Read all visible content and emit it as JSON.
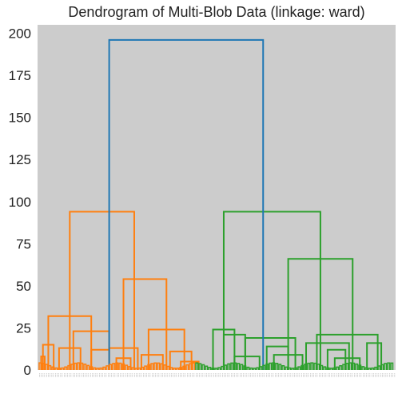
{
  "chart_data": {
    "type": "dendrogram",
    "title": "Dendrogram of Multi-Blob Data (linkage: ward)",
    "xlabel": "",
    "ylabel": "",
    "ylim": [
      0,
      205
    ],
    "yticks": [
      0,
      25,
      50,
      75,
      100,
      125,
      150,
      175,
      200
    ],
    "grid": false,
    "background_color": "#cccccc",
    "leaf_label_placeholder": "…",
    "series": [
      {
        "color": "#ff7f0e",
        "merges": [
          {
            "left_x": 0.03,
            "right_x": 0.15,
            "height": 32
          },
          {
            "left_x": 0.015,
            "right_x": 0.045,
            "height": 15
          },
          {
            "left_x": 0.1,
            "right_x": 0.2,
            "height": 23
          },
          {
            "left_x": 0.24,
            "right_x": 0.36,
            "height": 54
          },
          {
            "left_x": 0.2,
            "right_x": 0.28,
            "height": 13
          },
          {
            "left_x": 0.31,
            "right_x": 0.41,
            "height": 24
          },
          {
            "left_x": 0.09,
            "right_x": 0.27,
            "height": 94
          },
          {
            "left_x": 0.01,
            "right_x": 0.02,
            "height": 8
          },
          {
            "left_x": 0.06,
            "right_x": 0.12,
            "height": 13
          },
          {
            "left_x": 0.15,
            "right_x": 0.2,
            "height": 12
          },
          {
            "left_x": 0.22,
            "right_x": 0.26,
            "height": 7
          },
          {
            "left_x": 0.29,
            "right_x": 0.35,
            "height": 9
          },
          {
            "left_x": 0.37,
            "right_x": 0.43,
            "height": 11
          },
          {
            "left_x": 0.4,
            "right_x": 0.45,
            "height": 5
          }
        ]
      },
      {
        "color": "#2ca02c",
        "merges": [
          {
            "left_x": 0.49,
            "right_x": 0.55,
            "height": 24
          },
          {
            "left_x": 0.52,
            "right_x": 0.58,
            "height": 21
          },
          {
            "left_x": 0.58,
            "right_x": 0.72,
            "height": 19
          },
          {
            "left_x": 0.64,
            "right_x": 0.7,
            "height": 14
          },
          {
            "left_x": 0.75,
            "right_x": 0.87,
            "height": 16
          },
          {
            "left_x": 0.78,
            "right_x": 0.95,
            "height": 21
          },
          {
            "left_x": 0.81,
            "right_x": 0.86,
            "height": 12
          },
          {
            "left_x": 0.92,
            "right_x": 0.96,
            "height": 16
          },
          {
            "left_x": 0.7,
            "right_x": 0.88,
            "height": 66
          },
          {
            "left_x": 0.52,
            "right_x": 0.79,
            "height": 94
          },
          {
            "left_x": 0.55,
            "right_x": 0.62,
            "height": 8
          },
          {
            "left_x": 0.66,
            "right_x": 0.74,
            "height": 9
          },
          {
            "left_x": 0.83,
            "right_x": 0.9,
            "height": 7
          }
        ]
      },
      {
        "color": "#1f77b4",
        "merges": [
          {
            "left_x": 0.2,
            "right_x": 0.63,
            "height": 196
          }
        ]
      }
    ]
  }
}
